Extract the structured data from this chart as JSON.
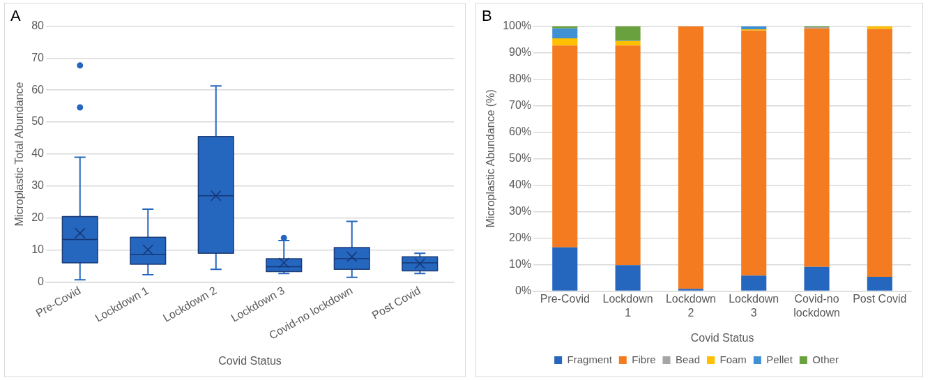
{
  "chart_data": [
    {
      "type": "box",
      "title": "A",
      "xlabel": "Covid Status",
      "ylabel": "Microplastic Total Abundance",
      "categories": [
        "Pre-Covid",
        "Lockdown 1",
        "Lockdown 2",
        "Lockdown 3",
        "Covid-no lockdown",
        "Post Covid"
      ],
      "color": "#2566be",
      "boxes": [
        {
          "low": 0.7,
          "q1": 6,
          "median": 13.3,
          "q3": 20.5,
          "high": 39,
          "mean": 15.3,
          "outliers": [
            54.6,
            67.7
          ]
        },
        {
          "low": 2.3,
          "q1": 5.6,
          "median": 8.7,
          "q3": 14,
          "high": 22.8,
          "mean": 10.1
        },
        {
          "low": 4,
          "q1": 9,
          "median": 27,
          "q3": 45.5,
          "high": 61.3,
          "mean": 27
        },
        {
          "low": 2.7,
          "q1": 3.3,
          "median": 4.8,
          "q3": 7.3,
          "high": 13,
          "mean": 6,
          "outliers": [
            13.8
          ]
        },
        {
          "low": 1.5,
          "q1": 4,
          "median": 7.3,
          "q3": 10.8,
          "high": 19,
          "mean": 7.9
        },
        {
          "low": 2.7,
          "q1": 3.5,
          "median": 6,
          "q3": 7.9,
          "high": 9,
          "mean": 5.8
        }
      ],
      "ylim": [
        0,
        80
      ],
      "yticks": [
        0,
        10,
        20,
        30,
        40,
        50,
        60,
        70,
        80
      ],
      "grid": "y"
    },
    {
      "type": "bar",
      "title": "B",
      "xlabel": "Covid Status",
      "ylabel": "Microplastic Abundance (%)",
      "categories": [
        "Pre-Covid",
        "Lockdown 1",
        "Lockdown 2",
        "Lockdown 3",
        "Covid-no lockdown",
        "Post Covid"
      ],
      "stacked": true,
      "series": [
        {
          "name": "Fragment",
          "color": "#2566be",
          "values": [
            16.5,
            9.8,
            0.8,
            5.8,
            9.1,
            5.4
          ]
        },
        {
          "name": "Fibre",
          "color": "#f47b20",
          "values": [
            76.2,
            82.9,
            99.2,
            92.5,
            90,
            93.5
          ]
        },
        {
          "name": "Bead",
          "color": "#a5a5a5",
          "values": [
            0,
            0,
            0,
            0,
            0.5,
            0
          ]
        },
        {
          "name": "Foam",
          "color": "#ffc000",
          "values": [
            2.7,
            1.7,
            0,
            0.5,
            0,
            1.1
          ]
        },
        {
          "name": "Pellet",
          "color": "#4090d4",
          "values": [
            3.7,
            0.2,
            0,
            1.2,
            0,
            0
          ]
        },
        {
          "name": "Other",
          "color": "#6aa13f",
          "values": [
            0.9,
            5.4,
            0,
            0,
            0.4,
            0
          ]
        }
      ],
      "ylim": [
        0,
        100
      ],
      "yticks": [
        {
          "value": 0,
          "label": "0%"
        },
        {
          "value": 10,
          "label": "10%"
        },
        {
          "value": 20,
          "label": "20%"
        },
        {
          "value": 30,
          "label": "30%"
        },
        {
          "value": 40,
          "label": "40%"
        },
        {
          "value": 50,
          "label": "50%"
        },
        {
          "value": 60,
          "label": "60%"
        },
        {
          "value": 70,
          "label": "70%"
        },
        {
          "value": 80,
          "label": "80%"
        },
        {
          "value": 90,
          "label": "90%"
        },
        {
          "value": 100,
          "label": "100%"
        }
      ],
      "grid": "y",
      "legend": "bottom"
    }
  ]
}
